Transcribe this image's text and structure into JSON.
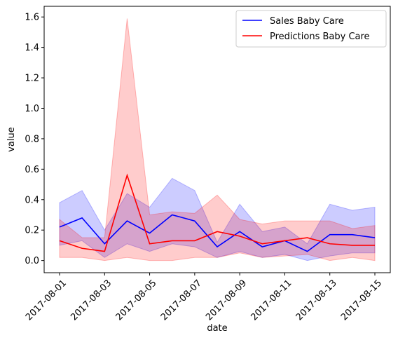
{
  "chart_data": {
    "type": "line",
    "xlabel": "date",
    "ylabel": "value",
    "x": [
      "2017-08-01",
      "2017-08-02",
      "2017-08-03",
      "2017-08-04",
      "2017-08-05",
      "2017-08-06",
      "2017-08-07",
      "2017-08-08",
      "2017-08-09",
      "2017-08-10",
      "2017-08-11",
      "2017-08-12",
      "2017-08-13",
      "2017-08-14",
      "2017-08-15"
    ],
    "x_tick_labels": [
      "2017-08-01",
      "2017-08-03",
      "2017-08-05",
      "2017-08-07",
      "2017-08-09",
      "2017-08-11",
      "2017-08-13",
      "2017-08-15"
    ],
    "y_ticks": [
      0.0,
      0.2,
      0.4,
      0.6,
      0.8,
      1.0,
      1.2,
      1.4,
      1.6
    ],
    "y_tick_labels": [
      "0.0",
      "0.2",
      "0.4",
      "0.6",
      "0.8",
      "1.0",
      "1.2",
      "1.4",
      "1.6"
    ],
    "ylim": [
      -0.08,
      1.67
    ],
    "legend_position": "top-right",
    "series": [
      {
        "name": "Sales Baby Care",
        "color": "#0000ff",
        "values": [
          0.22,
          0.28,
          0.11,
          0.26,
          0.18,
          0.3,
          0.26,
          0.09,
          0.19,
          0.09,
          0.13,
          0.06,
          0.17,
          0.17,
          0.15
        ],
        "band_upper": [
          0.38,
          0.46,
          0.2,
          0.44,
          0.35,
          0.54,
          0.46,
          0.12,
          0.37,
          0.19,
          0.22,
          0.11,
          0.37,
          0.33,
          0.35
        ],
        "band_lower": [
          0.1,
          0.13,
          0.02,
          0.11,
          0.06,
          0.11,
          0.09,
          0.02,
          0.06,
          0.02,
          0.04,
          0.0,
          0.03,
          0.05,
          0.05
        ]
      },
      {
        "name": "Predictions Baby Care",
        "color": "#ff0000",
        "values": [
          0.13,
          0.08,
          0.06,
          0.56,
          0.11,
          0.13,
          0.13,
          0.19,
          0.16,
          0.11,
          0.13,
          0.15,
          0.11,
          0.1,
          0.1
        ],
        "band_upper": [
          0.27,
          0.15,
          0.15,
          1.59,
          0.3,
          0.32,
          0.31,
          0.43,
          0.27,
          0.24,
          0.26,
          0.26,
          0.26,
          0.21,
          0.23
        ],
        "band_lower": [
          0.02,
          0.02,
          0.0,
          0.02,
          0.0,
          0.0,
          0.02,
          0.02,
          0.05,
          0.02,
          0.03,
          0.04,
          0.0,
          0.02,
          0.0
        ]
      }
    ]
  }
}
